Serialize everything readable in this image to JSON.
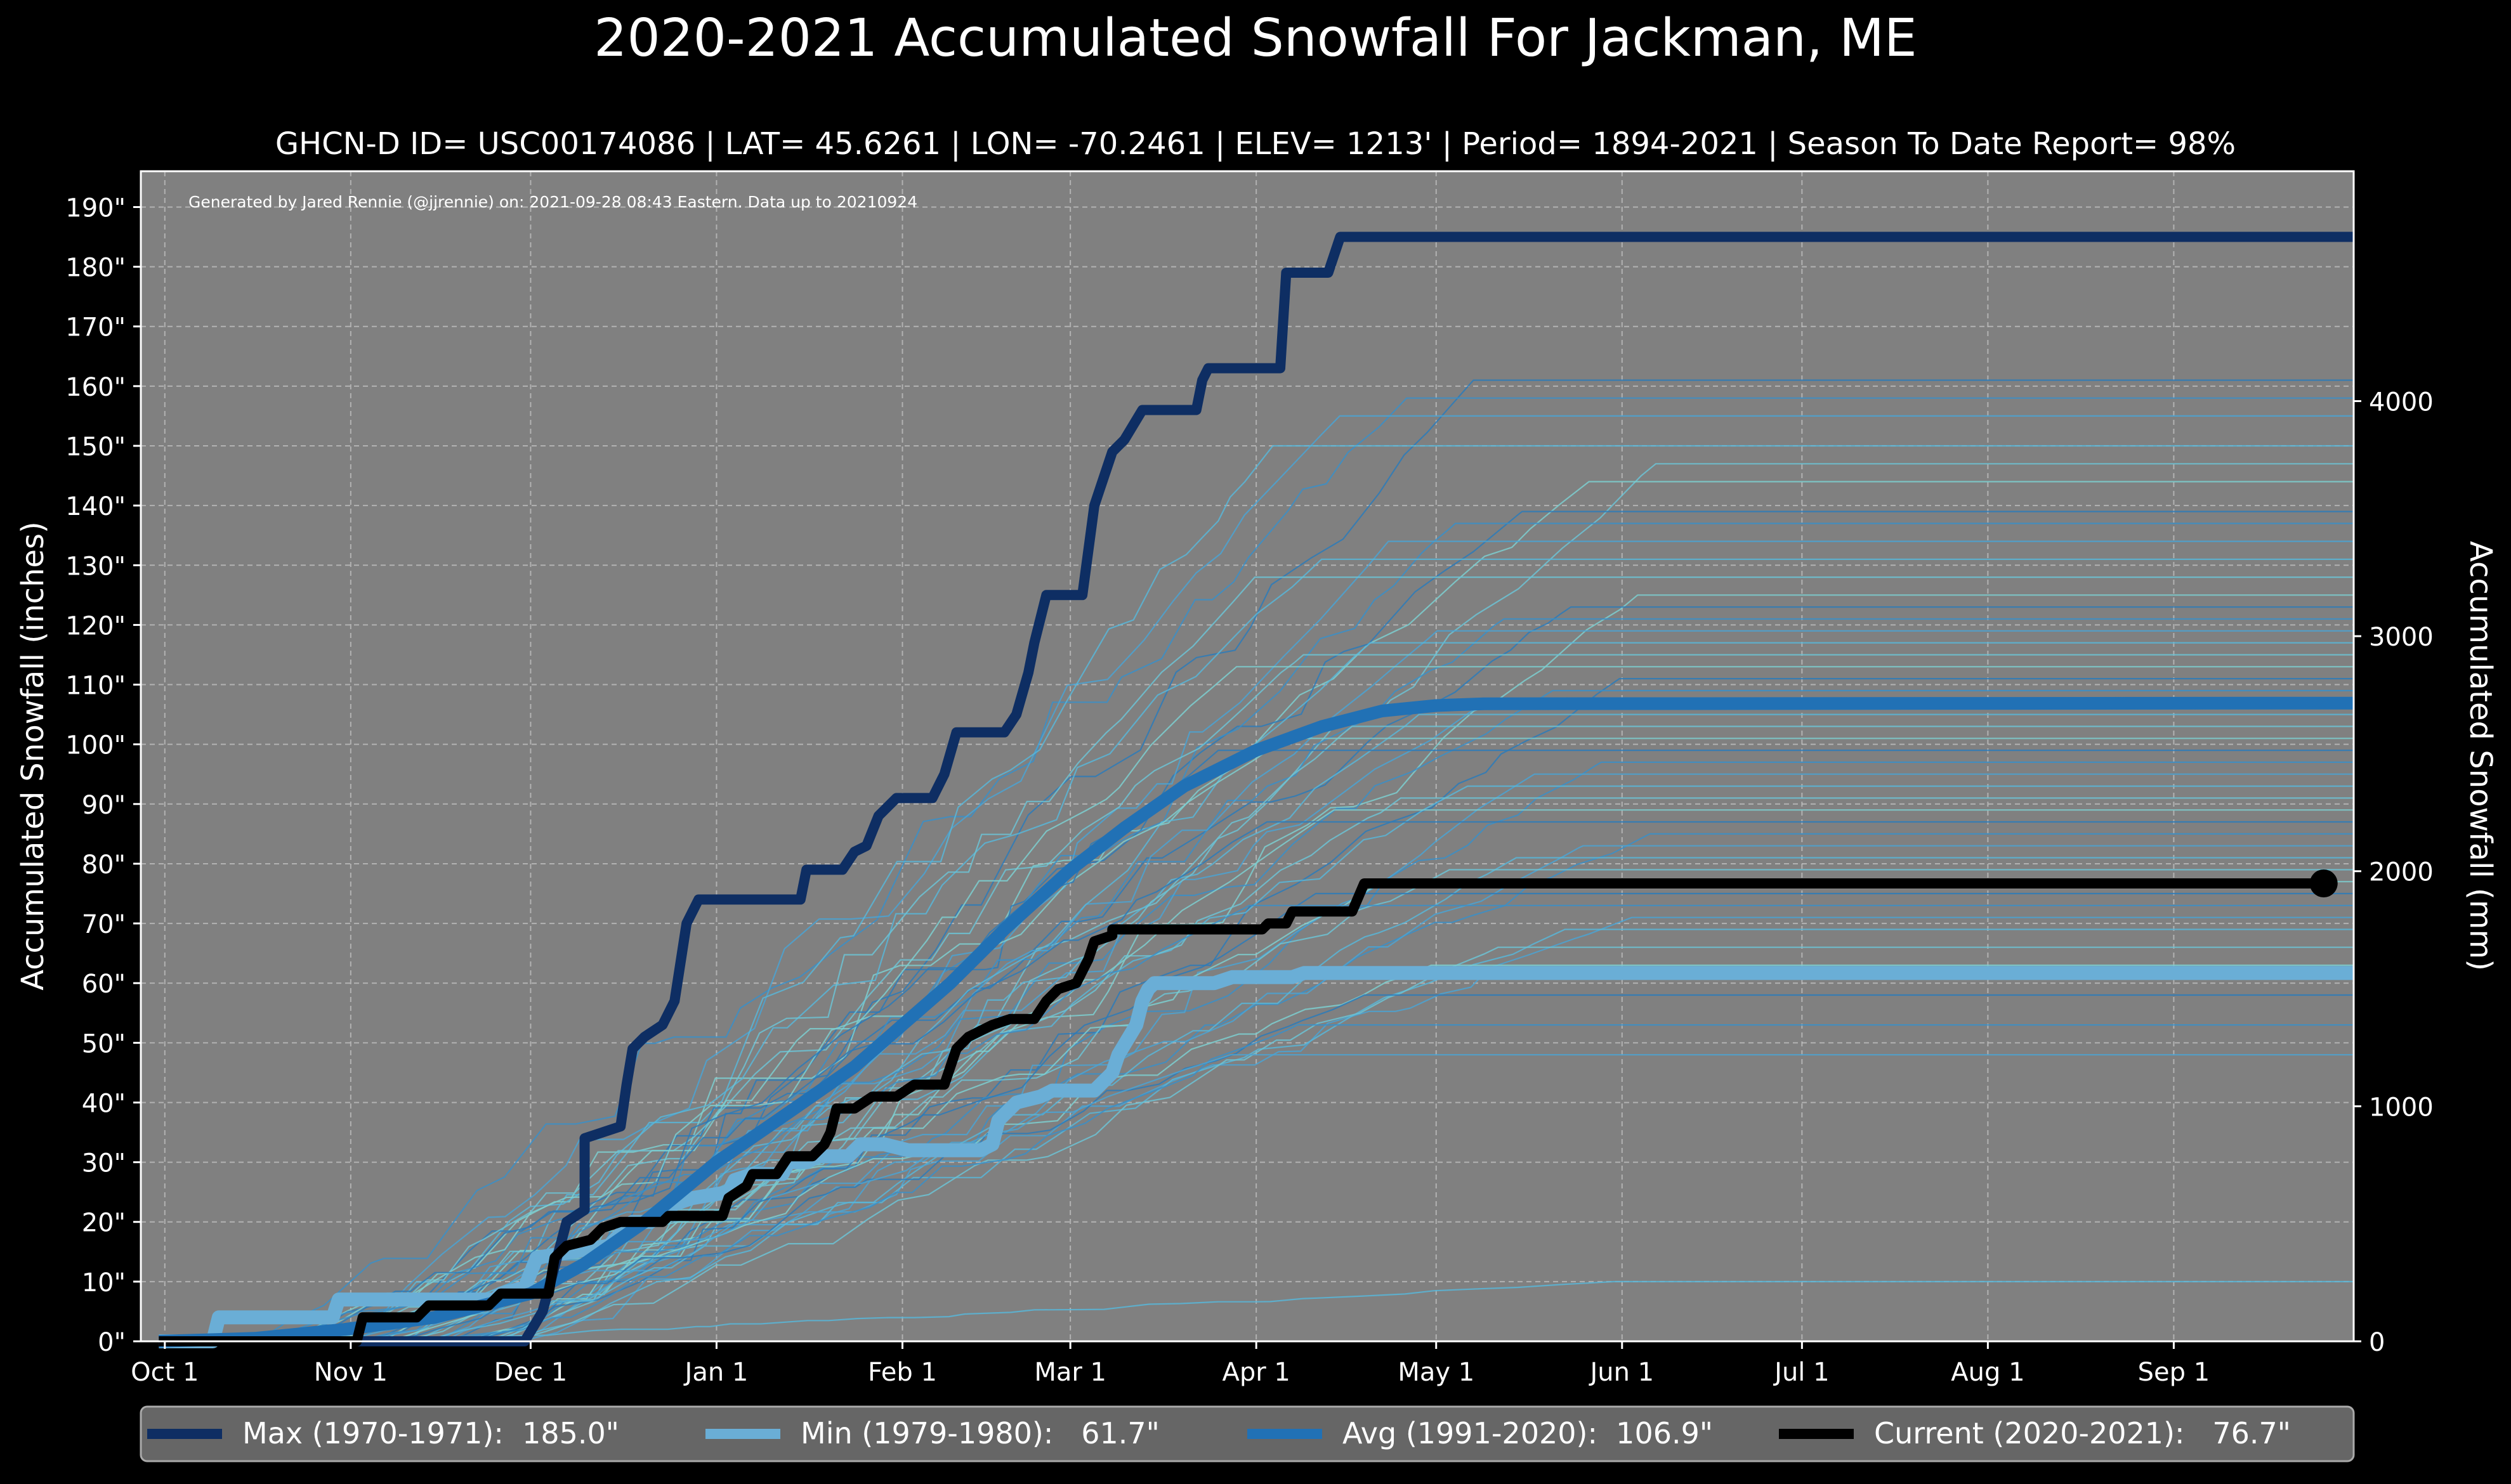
{
  "colors": {
    "background": "#000000",
    "plot_bg": "#808080",
    "grid": "#c8c8c8",
    "text": "#ffffff",
    "max": "#0e2e63",
    "min": "#6aaed6",
    "avg": "#2171b5",
    "current": "#000000",
    "history_palette": [
      "#2b7bba",
      "#3a8fc8",
      "#4aa3d4",
      "#58b6d8",
      "#6cc3d5",
      "#7ccfd0"
    ]
  },
  "chart_data": {
    "type": "line",
    "title": "2020-2021 Accumulated Snowfall For Jackman, ME",
    "subtitle": "GHCN-D ID= USC00174086 | LAT= 45.6261 | LON= -70.2461 | ELEV= 1213' | Period= 1894-2021 | Season To Date Report= 98%",
    "annotation": "Generated by Jared Rennie (@jjrennie) on: 2021-09-28 08:43 Eastern. Data up to 20210924",
    "ylabel": "Accumulated Snowfall (inches)",
    "y2label": "Accumulated Snowfall (mm)",
    "xlim": [
      -4,
      365
    ],
    "ylim": [
      0,
      196
    ],
    "y2lim": [
      0,
      4978
    ],
    "x_ticks": [
      {
        "day": 0,
        "label": "Oct 1"
      },
      {
        "day": 31,
        "label": "Nov 1"
      },
      {
        "day": 61,
        "label": "Dec 1"
      },
      {
        "day": 92,
        "label": "Jan 1"
      },
      {
        "day": 123,
        "label": "Feb 1"
      },
      {
        "day": 151,
        "label": "Mar 1"
      },
      {
        "day": 182,
        "label": "Apr 1"
      },
      {
        "day": 212,
        "label": "May 1"
      },
      {
        "day": 243,
        "label": "Jun 1"
      },
      {
        "day": 273,
        "label": "Jul 1"
      },
      {
        "day": 304,
        "label": "Aug 1"
      },
      {
        "day": 335,
        "label": "Sep 1"
      }
    ],
    "y_ticks": [
      {
        "value": 0,
        "label": "0\""
      },
      {
        "value": 10,
        "label": "10\""
      },
      {
        "value": 20,
        "label": "20\""
      },
      {
        "value": 30,
        "label": "30\""
      },
      {
        "value": 40,
        "label": "40\""
      },
      {
        "value": 50,
        "label": "50\""
      },
      {
        "value": 60,
        "label": "60\""
      },
      {
        "value": 70,
        "label": "70\""
      },
      {
        "value": 80,
        "label": "80\""
      },
      {
        "value": 90,
        "label": "90\""
      },
      {
        "value": 100,
        "label": "100\""
      },
      {
        "value": 110,
        "label": "110\""
      },
      {
        "value": 120,
        "label": "120\""
      },
      {
        "value": 130,
        "label": "130\""
      },
      {
        "value": 140,
        "label": "140\""
      },
      {
        "value": 150,
        "label": "150\""
      },
      {
        "value": 160,
        "label": "160\""
      },
      {
        "value": 170,
        "label": "170\""
      },
      {
        "value": 180,
        "label": "180\""
      },
      {
        "value": 190,
        "label": "190\""
      }
    ],
    "y2_ticks": [
      {
        "value": 0,
        "label": "0"
      },
      {
        "value": 1000,
        "label": "1000"
      },
      {
        "value": 2000,
        "label": "2000"
      },
      {
        "value": 3000,
        "label": "3000"
      },
      {
        "value": 4000,
        "label": "4000"
      }
    ],
    "historical_final_totals": [
      161,
      158,
      155,
      150,
      147,
      144,
      139,
      137,
      134,
      131,
      128,
      125,
      123,
      121,
      119,
      117,
      115,
      113,
      111,
      109,
      107,
      105,
      103,
      101,
      99,
      97,
      95,
      93,
      91,
      89,
      87,
      85,
      83,
      81,
      79,
      77,
      75,
      73,
      71,
      69,
      66,
      63,
      58,
      53,
      48,
      10
    ],
    "series": [
      {
        "name": "Max (1970-1971)",
        "legend": "Max (1970-1971):  185.0\"",
        "color_key": "max",
        "final": 185.0,
        "points": [
          [
            -1,
            0
          ],
          [
            60,
            0
          ],
          [
            63,
            5
          ],
          [
            67,
            20
          ],
          [
            70,
            22
          ],
          [
            70,
            34
          ],
          [
            73,
            35
          ],
          [
            76,
            36
          ],
          [
            77,
            43
          ],
          [
            78,
            49
          ],
          [
            80,
            51
          ],
          [
            83,
            53
          ],
          [
            85,
            57
          ],
          [
            87,
            70
          ],
          [
            89,
            74
          ],
          [
            106,
            74
          ],
          [
            107,
            79
          ],
          [
            113,
            79
          ],
          [
            115,
            82
          ],
          [
            117,
            83
          ],
          [
            119,
            88
          ],
          [
            122,
            91
          ],
          [
            128,
            91
          ],
          [
            130,
            95
          ],
          [
            132,
            102
          ],
          [
            140,
            102
          ],
          [
            142,
            105
          ],
          [
            144,
            112
          ],
          [
            145,
            117
          ],
          [
            147,
            125
          ],
          [
            153,
            125
          ],
          [
            155,
            140
          ],
          [
            156,
            143
          ],
          [
            158,
            149
          ],
          [
            160,
            151
          ],
          [
            163,
            156
          ],
          [
            172,
            156
          ],
          [
            173,
            161
          ],
          [
            174,
            163
          ],
          [
            186,
            163
          ],
          [
            187,
            179
          ],
          [
            194,
            179
          ],
          [
            196,
            185
          ],
          [
            365,
            185
          ]
        ]
      },
      {
        "name": "Min (1979-1980)",
        "legend": "Min (1979-1980):   61.7\"",
        "color_key": "min",
        "final": 61.7,
        "points": [
          [
            -1,
            0
          ],
          [
            8,
            0
          ],
          [
            9,
            4
          ],
          [
            28,
            4
          ],
          [
            29,
            7
          ],
          [
            55,
            7
          ],
          [
            56,
            8
          ],
          [
            60,
            9
          ],
          [
            62,
            14
          ],
          [
            74,
            16
          ],
          [
            76,
            18
          ],
          [
            78,
            20
          ],
          [
            81,
            20
          ],
          [
            83,
            22
          ],
          [
            85,
            23
          ],
          [
            88,
            24
          ],
          [
            94,
            25
          ],
          [
            95,
            27
          ],
          [
            98,
            28
          ],
          [
            103,
            28
          ],
          [
            104,
            30
          ],
          [
            105,
            30
          ],
          [
            107,
            30
          ],
          [
            109,
            31
          ],
          [
            111,
            31
          ],
          [
            114,
            31
          ],
          [
            116,
            33
          ],
          [
            120,
            33
          ],
          [
            124,
            32
          ],
          [
            136,
            32
          ],
          [
            138,
            33
          ],
          [
            139,
            37
          ],
          [
            140,
            38
          ],
          [
            142,
            40
          ],
          [
            146,
            41
          ],
          [
            148,
            42
          ],
          [
            155,
            42
          ],
          [
            158,
            45
          ],
          [
            159,
            48
          ],
          [
            162,
            53
          ],
          [
            163,
            57
          ],
          [
            164,
            59
          ],
          [
            165,
            60
          ],
          [
            175,
            60
          ],
          [
            178,
            61
          ],
          [
            188,
            61
          ],
          [
            190,
            61.7
          ],
          [
            365,
            61.7
          ]
        ]
      },
      {
        "name": "Avg (1991-2020)",
        "legend": "Avg (1991-2020):  106.9\"",
        "color_key": "avg",
        "final": 106.9,
        "points": [
          [
            -1,
            0
          ],
          [
            15,
            0.5
          ],
          [
            30,
            2
          ],
          [
            45,
            4
          ],
          [
            61,
            8
          ],
          [
            70,
            13
          ],
          [
            80,
            20
          ],
          [
            92,
            30
          ],
          [
            105,
            39
          ],
          [
            115,
            46
          ],
          [
            123,
            53
          ],
          [
            131,
            60
          ],
          [
            140,
            69
          ],
          [
            151,
            79
          ],
          [
            160,
            86
          ],
          [
            170,
            93
          ],
          [
            182,
            99
          ],
          [
            193,
            103
          ],
          [
            203,
            105.6
          ],
          [
            212,
            106.5
          ],
          [
            220,
            106.8
          ],
          [
            365,
            106.9
          ]
        ]
      },
      {
        "name": "Current (2020-2021)",
        "legend": "Current (2020-2021):   76.7\"",
        "color_key": "current",
        "final": 76.7,
        "points": [
          [
            -1,
            0
          ],
          [
            32,
            0
          ],
          [
            33,
            4
          ],
          [
            42,
            4
          ],
          [
            44,
            6
          ],
          [
            54,
            6
          ],
          [
            56,
            8
          ],
          [
            64,
            8
          ],
          [
            65,
            14
          ],
          [
            67,
            16
          ],
          [
            71,
            17
          ],
          [
            73,
            19
          ],
          [
            76,
            20
          ],
          [
            83,
            20
          ],
          [
            84,
            21
          ],
          [
            93,
            21
          ],
          [
            94,
            24
          ],
          [
            97,
            26
          ],
          [
            98,
            28
          ],
          [
            102,
            28
          ],
          [
            104,
            31
          ],
          [
            108,
            31
          ],
          [
            110,
            33
          ],
          [
            111,
            35
          ],
          [
            112,
            39
          ],
          [
            115,
            39
          ],
          [
            118,
            41
          ],
          [
            122,
            41
          ],
          [
            125,
            43
          ],
          [
            130,
            43
          ],
          [
            131,
            46
          ],
          [
            132,
            49
          ],
          [
            134,
            51
          ],
          [
            138,
            53
          ],
          [
            141,
            54
          ],
          [
            145,
            54
          ],
          [
            147,
            57
          ],
          [
            149,
            59
          ],
          [
            152,
            60
          ],
          [
            154,
            64
          ],
          [
            155,
            67
          ],
          [
            158,
            68
          ],
          [
            158,
            69
          ],
          [
            165,
            69
          ],
          [
            174,
            69
          ],
          [
            183,
            69
          ],
          [
            184,
            70
          ],
          [
            187,
            70
          ],
          [
            188,
            72
          ],
          [
            198,
            72
          ],
          [
            200,
            76.7
          ],
          [
            360,
            76.7
          ]
        ]
      }
    ]
  }
}
